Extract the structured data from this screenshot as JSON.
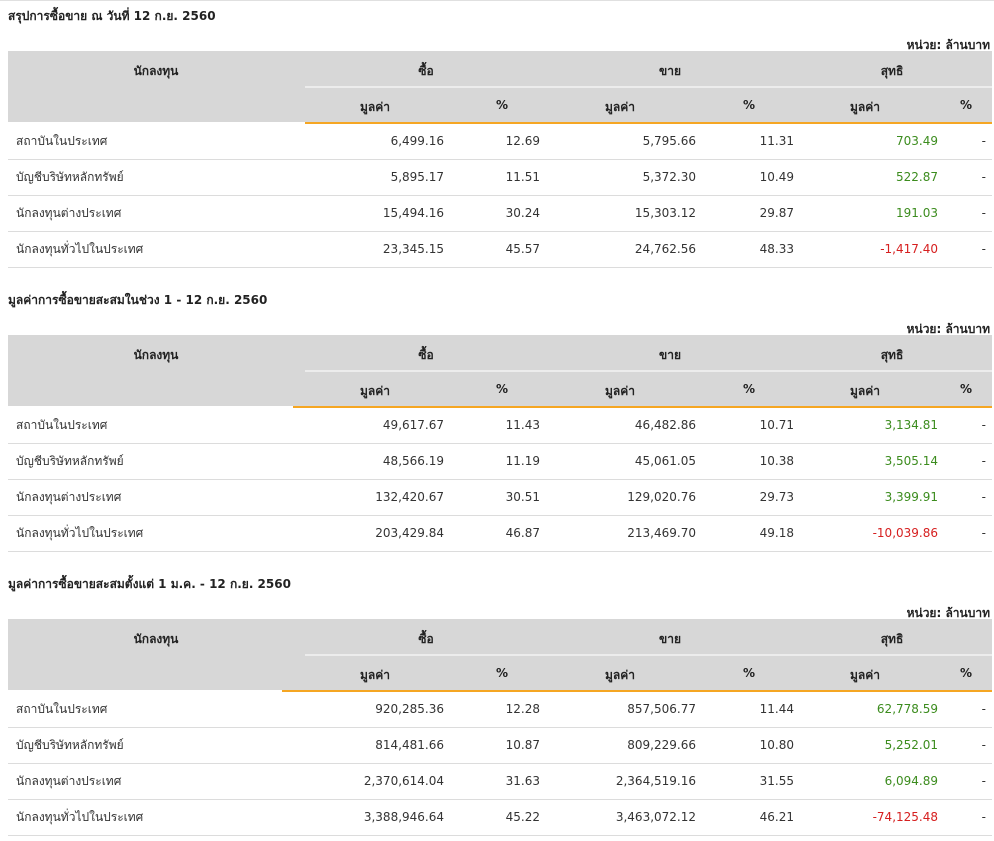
{
  "colors": {
    "header_bg": "#d7d7d7",
    "accent_orange": "#f5a623",
    "positive": "#3c8c1e",
    "negative": "#d62020"
  },
  "headers": {
    "investor": "นักลงทุน",
    "buy": "ซื้อ",
    "sell": "ขาย",
    "net": "สุทธิ",
    "value": "มูลค่า",
    "pct": "%"
  },
  "unit_label": "หน่วย: ล้านบาท",
  "sections": [
    {
      "title": "สรุปการซื้อขาย ณ วันที่ 12 ก.ย. 2560",
      "rows": [
        {
          "investor": "สถาบันในประเทศ",
          "buy_value": "6,499.16",
          "buy_pct": "12.69",
          "sell_value": "5,795.66",
          "sell_pct": "11.31",
          "net_value": "703.49",
          "net_pct": "-",
          "net_sign": "pos"
        },
        {
          "investor": "บัญชีบริษัทหลักทรัพย์",
          "buy_value": "5,895.17",
          "buy_pct": "11.51",
          "sell_value": "5,372.30",
          "sell_pct": "10.49",
          "net_value": "522.87",
          "net_pct": "-",
          "net_sign": "pos"
        },
        {
          "investor": "นักลงทุนต่างประเทศ",
          "buy_value": "15,494.16",
          "buy_pct": "30.24",
          "sell_value": "15,303.12",
          "sell_pct": "29.87",
          "net_value": "191.03",
          "net_pct": "-",
          "net_sign": "pos"
        },
        {
          "investor": "นักลงทุนทั่วไปในประเทศ",
          "buy_value": "23,345.15",
          "buy_pct": "45.57",
          "sell_value": "24,762.56",
          "sell_pct": "48.33",
          "net_value": "-1,417.40",
          "net_pct": "-",
          "net_sign": "neg"
        }
      ]
    },
    {
      "title": "มูลค่าการซื้อขายสะสมในช่วง 1 - 12 ก.ย. 2560",
      "rows": [
        {
          "investor": "สถาบันในประเทศ",
          "buy_value": "49,617.67",
          "buy_pct": "11.43",
          "sell_value": "46,482.86",
          "sell_pct": "10.71",
          "net_value": "3,134.81",
          "net_pct": "-",
          "net_sign": "pos"
        },
        {
          "investor": "บัญชีบริษัทหลักทรัพย์",
          "buy_value": "48,566.19",
          "buy_pct": "11.19",
          "sell_value": "45,061.05",
          "sell_pct": "10.38",
          "net_value": "3,505.14",
          "net_pct": "-",
          "net_sign": "pos"
        },
        {
          "investor": "นักลงทุนต่างประเทศ",
          "buy_value": "132,420.67",
          "buy_pct": "30.51",
          "sell_value": "129,020.76",
          "sell_pct": "29.73",
          "net_value": "3,399.91",
          "net_pct": "-",
          "net_sign": "pos"
        },
        {
          "investor": "นักลงทุนทั่วไปในประเทศ",
          "buy_value": "203,429.84",
          "buy_pct": "46.87",
          "sell_value": "213,469.70",
          "sell_pct": "49.18",
          "net_value": "-10,039.86",
          "net_pct": "-",
          "net_sign": "neg"
        }
      ]
    },
    {
      "title": "มูลค่าการซื้อขายสะสมตั้งแต่ 1 ม.ค. - 12 ก.ย. 2560",
      "rows": [
        {
          "investor": "สถาบันในประเทศ",
          "buy_value": "920,285.36",
          "buy_pct": "12.28",
          "sell_value": "857,506.77",
          "sell_pct": "11.44",
          "net_value": "62,778.59",
          "net_pct": "-",
          "net_sign": "pos"
        },
        {
          "investor": "บัญชีบริษัทหลักทรัพย์",
          "buy_value": "814,481.66",
          "buy_pct": "10.87",
          "sell_value": "809,229.66",
          "sell_pct": "10.80",
          "net_value": "5,252.01",
          "net_pct": "-",
          "net_sign": "pos"
        },
        {
          "investor": "นักลงทุนต่างประเทศ",
          "buy_value": "2,370,614.04",
          "buy_pct": "31.63",
          "sell_value": "2,364,519.16",
          "sell_pct": "31.55",
          "net_value": "6,094.89",
          "net_pct": "-",
          "net_sign": "pos"
        },
        {
          "investor": "นักลงทุนทั่วไปในประเทศ",
          "buy_value": "3,388,946.64",
          "buy_pct": "45.22",
          "sell_value": "3,463,072.12",
          "sell_pct": "46.21",
          "net_value": "-74,125.48",
          "net_pct": "-",
          "net_sign": "neg"
        }
      ]
    }
  ]
}
